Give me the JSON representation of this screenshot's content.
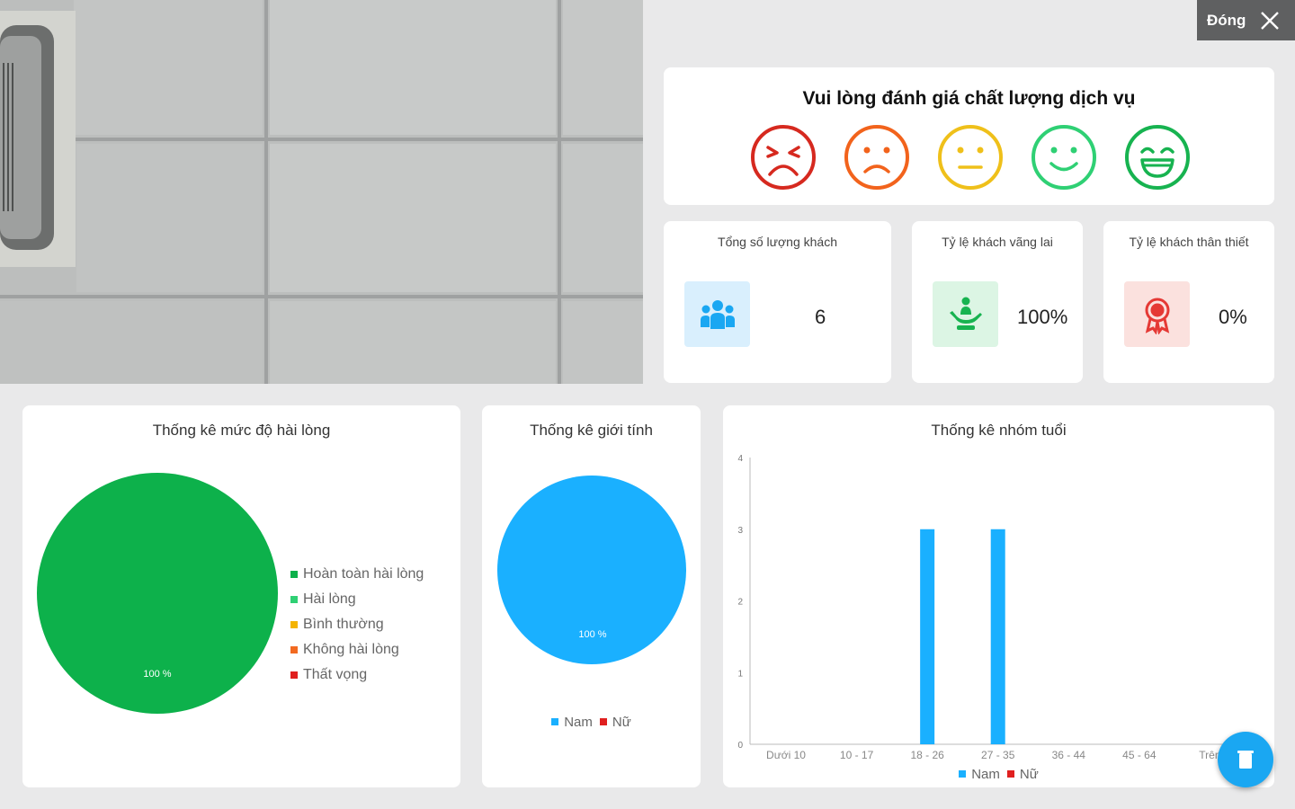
{
  "close_button": {
    "label": "Đóng"
  },
  "rating": {
    "title": "Vui lòng đánh giá chất lượng dịch vụ",
    "faces": [
      {
        "name": "very-dissatisfied",
        "color": "#d6291f"
      },
      {
        "name": "dissatisfied",
        "color": "#f2631c"
      },
      {
        "name": "neutral",
        "color": "#efc01a"
      },
      {
        "name": "satisfied",
        "color": "#2fd074"
      },
      {
        "name": "very-satisfied",
        "color": "#17b350"
      }
    ]
  },
  "stats": {
    "total": {
      "title": "Tổng số lượng khách",
      "value": "6",
      "icon": "group-icon",
      "bg": "#d9effd",
      "color": "#1aa7f2"
    },
    "walkin": {
      "title": "Tỷ lệ khách vãng lai",
      "value": "100%",
      "icon": "person-hands-icon",
      "bg": "#dcf5e4",
      "color": "#17b350"
    },
    "loyal": {
      "title": "Tỷ lệ khách thân thiết",
      "value": "0%",
      "icon": "award-icon",
      "bg": "#fbe1de",
      "color": "#e53935"
    }
  },
  "satisfaction_chart": {
    "title": "Thống kê mức độ hài lòng",
    "slice_label": "100 %",
    "legend": [
      {
        "label": "Hoàn toàn hài lòng",
        "color": "#0db14b"
      },
      {
        "label": "Hài lòng",
        "color": "#2fd074"
      },
      {
        "label": "Bình thường",
        "color": "#f4b400"
      },
      {
        "label": "Không hài lòng",
        "color": "#f26a21"
      },
      {
        "label": "Thất vọng",
        "color": "#e0201f"
      }
    ]
  },
  "gender_chart": {
    "title": "Thống kê giới tính",
    "slice_label": "100 %",
    "legend": [
      {
        "label": "Nam",
        "color": "#1ab0ff"
      },
      {
        "label": "Nữ",
        "color": "#e0201f"
      }
    ]
  },
  "age_chart": {
    "title": "Thống kê nhóm tuổi",
    "legend": [
      {
        "label": "Nam",
        "color": "#1ab0ff"
      },
      {
        "label": "Nữ",
        "color": "#e0201f"
      }
    ]
  },
  "chart_data": [
    {
      "type": "pie",
      "title": "Thống kê mức độ hài lòng",
      "categories": [
        "Hoàn toàn hài lòng",
        "Hài lòng",
        "Bình thường",
        "Không hài lòng",
        "Thất vọng"
      ],
      "values": [
        100,
        0,
        0,
        0,
        0
      ],
      "legend": "right"
    },
    {
      "type": "pie",
      "title": "Thống kê giới tính",
      "categories": [
        "Nam",
        "Nữ"
      ],
      "values": [
        100,
        0
      ],
      "legend": "bottom"
    },
    {
      "type": "bar",
      "title": "Thống kê nhóm tuổi",
      "categories": [
        "Dưới 10",
        "10 - 17",
        "18 - 26",
        "27 - 35",
        "36 - 44",
        "45 - 64",
        "Trên"
      ],
      "series": [
        {
          "name": "Nam",
          "values": [
            0,
            0,
            3,
            3,
            0,
            0,
            0
          ]
        },
        {
          "name": "Nữ",
          "values": [
            0,
            0,
            0,
            0,
            0,
            0,
            0
          ]
        }
      ],
      "yticks": [
        "0",
        "1",
        "2",
        "3",
        "4"
      ],
      "ylim": [
        0,
        4
      ],
      "legend": "bottom"
    }
  ]
}
